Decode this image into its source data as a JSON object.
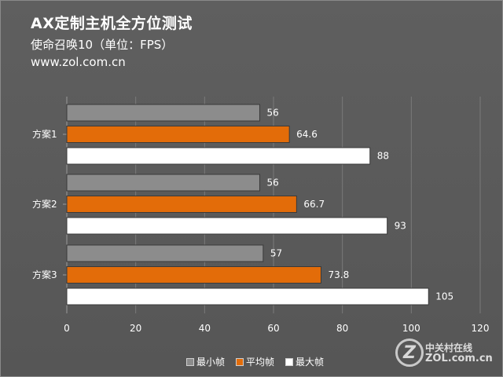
{
  "header": {
    "title": "AX定制主机全方位测试",
    "subtitle": "使命召唤10（单位：FPS）",
    "site": "www.zol.com.cn"
  },
  "watermark": {
    "mark": "Z",
    "line1": "中关村在线",
    "line2": "ZOL.com.cn"
  },
  "colors": {
    "min": "#8c8c8c",
    "avg": "#e36c09",
    "max": "#ffffff",
    "grid": "#7a7a7a",
    "text": "#ffffff"
  },
  "chart_data": {
    "type": "bar",
    "orientation": "horizontal",
    "categories": [
      "方案1",
      "方案2",
      "方案3"
    ],
    "series": [
      {
        "name": "最小帧",
        "values": [
          56,
          56,
          57
        ]
      },
      {
        "name": "平均帧",
        "values": [
          64.6,
          66.7,
          73.8
        ]
      },
      {
        "name": "最大帧",
        "values": [
          88,
          93,
          105
        ]
      }
    ],
    "value_labels": [
      [
        "56",
        "56",
        "57"
      ],
      [
        "64.6",
        "66.7",
        "73.8"
      ],
      [
        "88",
        "93",
        "105"
      ]
    ],
    "xlim": [
      0,
      120
    ],
    "xticks": [
      0,
      20,
      40,
      60,
      80,
      100,
      120
    ],
    "grid": true,
    "legend": "bottom"
  }
}
